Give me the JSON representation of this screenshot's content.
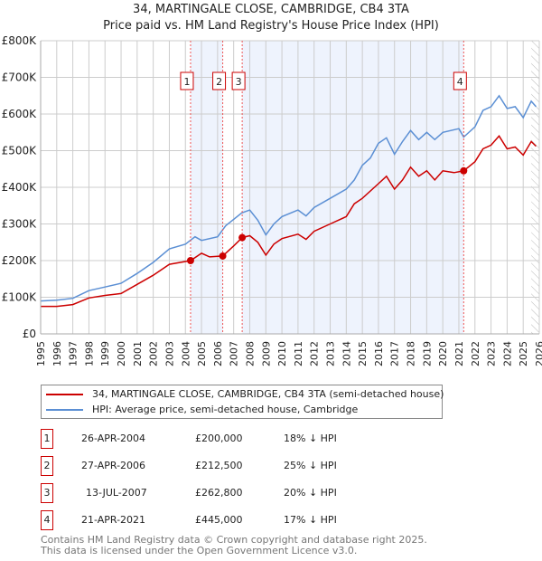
{
  "title": "34, MARTINGALE CLOSE, CAMBRIDGE, CB4 3TA",
  "subtitle": "Price paid vs. HM Land Registry's House Price Index (HPI)",
  "colors": {
    "property": "#cc0000",
    "hpi": "#5b8fd4",
    "shade": "#eef3fd"
  },
  "chart_data": {
    "type": "line",
    "title": "34, MARTINGALE CLOSE, CAMBRIDGE, CB4 3TA",
    "subtitle": "Price paid vs. HM Land Registry's House Price Index (HPI)",
    "xlim": [
      1995,
      2026
    ],
    "ylim": [
      0,
      800000
    ],
    "y_ticks": [
      {
        "v": 0,
        "label": "£0"
      },
      {
        "v": 100000,
        "label": "£100K"
      },
      {
        "v": 200000,
        "label": "£200K"
      },
      {
        "v": 300000,
        "label": "£300K"
      },
      {
        "v": 400000,
        "label": "£400K"
      },
      {
        "v": 500000,
        "label": "£500K"
      },
      {
        "v": 600000,
        "label": "£600K"
      },
      {
        "v": 700000,
        "label": "£700K"
      },
      {
        "v": 800000,
        "label": "£800K"
      }
    ],
    "x_ticks": [
      "1995",
      "1996",
      "1997",
      "1998",
      "1999",
      "2000",
      "2001",
      "2002",
      "2003",
      "2004",
      "2005",
      "2006",
      "2007",
      "2008",
      "2009",
      "2010",
      "2011",
      "2012",
      "2013",
      "2014",
      "2015",
      "2016",
      "2017",
      "2018",
      "2019",
      "2020",
      "2021",
      "2022",
      "2023",
      "2024",
      "2025",
      "2026"
    ],
    "grid": true,
    "forecast_hatch_from": 2025.5,
    "shaded_ranges": [
      [
        2004.32,
        2006.32
      ],
      [
        2007.53,
        2021.3
      ]
    ],
    "series": [
      {
        "name": "34, MARTINGALE CLOSE, CAMBRIDGE, CB4 3TA (semi-detached house)",
        "color": "#cc0000",
        "points": [
          [
            1995,
            75000
          ],
          [
            1996,
            75000
          ],
          [
            1997,
            80000
          ],
          [
            1998,
            98000
          ],
          [
            1999,
            105000
          ],
          [
            2000,
            110000
          ],
          [
            2001,
            135000
          ],
          [
            2002,
            160000
          ],
          [
            2003,
            190000
          ],
          [
            2004.32,
            200000
          ],
          [
            2005,
            220000
          ],
          [
            2005.5,
            210000
          ],
          [
            2006.32,
            212500
          ],
          [
            2007,
            240000
          ],
          [
            2007.53,
            262800
          ],
          [
            2008,
            268000
          ],
          [
            2008.5,
            250000
          ],
          [
            2009,
            215000
          ],
          [
            2009.5,
            245000
          ],
          [
            2010,
            260000
          ],
          [
            2011,
            272000
          ],
          [
            2011.5,
            258000
          ],
          [
            2012,
            280000
          ],
          [
            2013,
            300000
          ],
          [
            2014,
            320000
          ],
          [
            2014.5,
            355000
          ],
          [
            2015,
            370000
          ],
          [
            2016,
            410000
          ],
          [
            2016.5,
            430000
          ],
          [
            2017,
            395000
          ],
          [
            2017.5,
            420000
          ],
          [
            2018,
            455000
          ],
          [
            2018.5,
            430000
          ],
          [
            2019,
            445000
          ],
          [
            2019.5,
            420000
          ],
          [
            2020,
            445000
          ],
          [
            2020.7,
            440000
          ],
          [
            2021.3,
            445000
          ],
          [
            2022,
            470000
          ],
          [
            2022.5,
            505000
          ],
          [
            2023,
            515000
          ],
          [
            2023.5,
            540000
          ],
          [
            2024,
            505000
          ],
          [
            2024.5,
            510000
          ],
          [
            2025,
            488000
          ],
          [
            2025.5,
            525000
          ],
          [
            2025.8,
            512000
          ]
        ]
      },
      {
        "name": "HPI: Average price, semi-detached house, Cambridge",
        "color": "#5b8fd4",
        "points": [
          [
            1995,
            90000
          ],
          [
            1996,
            92000
          ],
          [
            1997,
            97000
          ],
          [
            1998,
            118000
          ],
          [
            1999,
            128000
          ],
          [
            2000,
            138000
          ],
          [
            2001,
            165000
          ],
          [
            2002,
            195000
          ],
          [
            2003,
            232000
          ],
          [
            2004,
            245000
          ],
          [
            2004.6,
            265000
          ],
          [
            2005,
            255000
          ],
          [
            2006,
            265000
          ],
          [
            2006.5,
            295000
          ],
          [
            2007.5,
            330000
          ],
          [
            2008,
            338000
          ],
          [
            2008.5,
            310000
          ],
          [
            2009,
            270000
          ],
          [
            2009.5,
            300000
          ],
          [
            2010,
            320000
          ],
          [
            2011,
            338000
          ],
          [
            2011.5,
            322000
          ],
          [
            2012,
            345000
          ],
          [
            2013,
            370000
          ],
          [
            2014,
            395000
          ],
          [
            2014.5,
            420000
          ],
          [
            2015,
            460000
          ],
          [
            2015.5,
            480000
          ],
          [
            2016,
            520000
          ],
          [
            2016.5,
            535000
          ],
          [
            2017,
            490000
          ],
          [
            2017.5,
            525000
          ],
          [
            2018,
            555000
          ],
          [
            2018.5,
            530000
          ],
          [
            2019,
            550000
          ],
          [
            2019.5,
            530000
          ],
          [
            2020,
            550000
          ],
          [
            2021,
            560000
          ],
          [
            2021.3,
            537000
          ],
          [
            2022,
            565000
          ],
          [
            2022.5,
            610000
          ],
          [
            2023,
            620000
          ],
          [
            2023.5,
            650000
          ],
          [
            2024,
            615000
          ],
          [
            2024.5,
            620000
          ],
          [
            2025,
            590000
          ],
          [
            2025.5,
            635000
          ],
          [
            2025.8,
            620000
          ]
        ]
      }
    ],
    "sales": [
      {
        "id": "1",
        "x": 2004.32,
        "value": 200000
      },
      {
        "id": "2",
        "x": 2006.32,
        "value": 212500
      },
      {
        "id": "3",
        "x": 2007.53,
        "value": 262800
      },
      {
        "id": "4",
        "x": 2021.3,
        "value": 445000
      }
    ]
  },
  "legend": [
    {
      "label": "34, MARTINGALE CLOSE, CAMBRIDGE, CB4 3TA (semi-detached house)"
    },
    {
      "label": "HPI: Average price, semi-detached house, Cambridge"
    }
  ],
  "transactions": [
    {
      "num": "1",
      "date": "26-APR-2004",
      "price": "£200,000",
      "delta": "18% ↓ HPI"
    },
    {
      "num": "2",
      "date": "27-APR-2006",
      "price": "£212,500",
      "delta": "25% ↓ HPI"
    },
    {
      "num": "3",
      "date": "13-JUL-2007",
      "price": "£262,800",
      "delta": "20% ↓ HPI"
    },
    {
      "num": "4",
      "date": "21-APR-2021",
      "price": "£445,000",
      "delta": "17% ↓ HPI"
    }
  ],
  "footer": [
    "Contains HM Land Registry data © Crown copyright and database right 2025.",
    "This data is licensed under the Open Government Licence v3.0."
  ]
}
